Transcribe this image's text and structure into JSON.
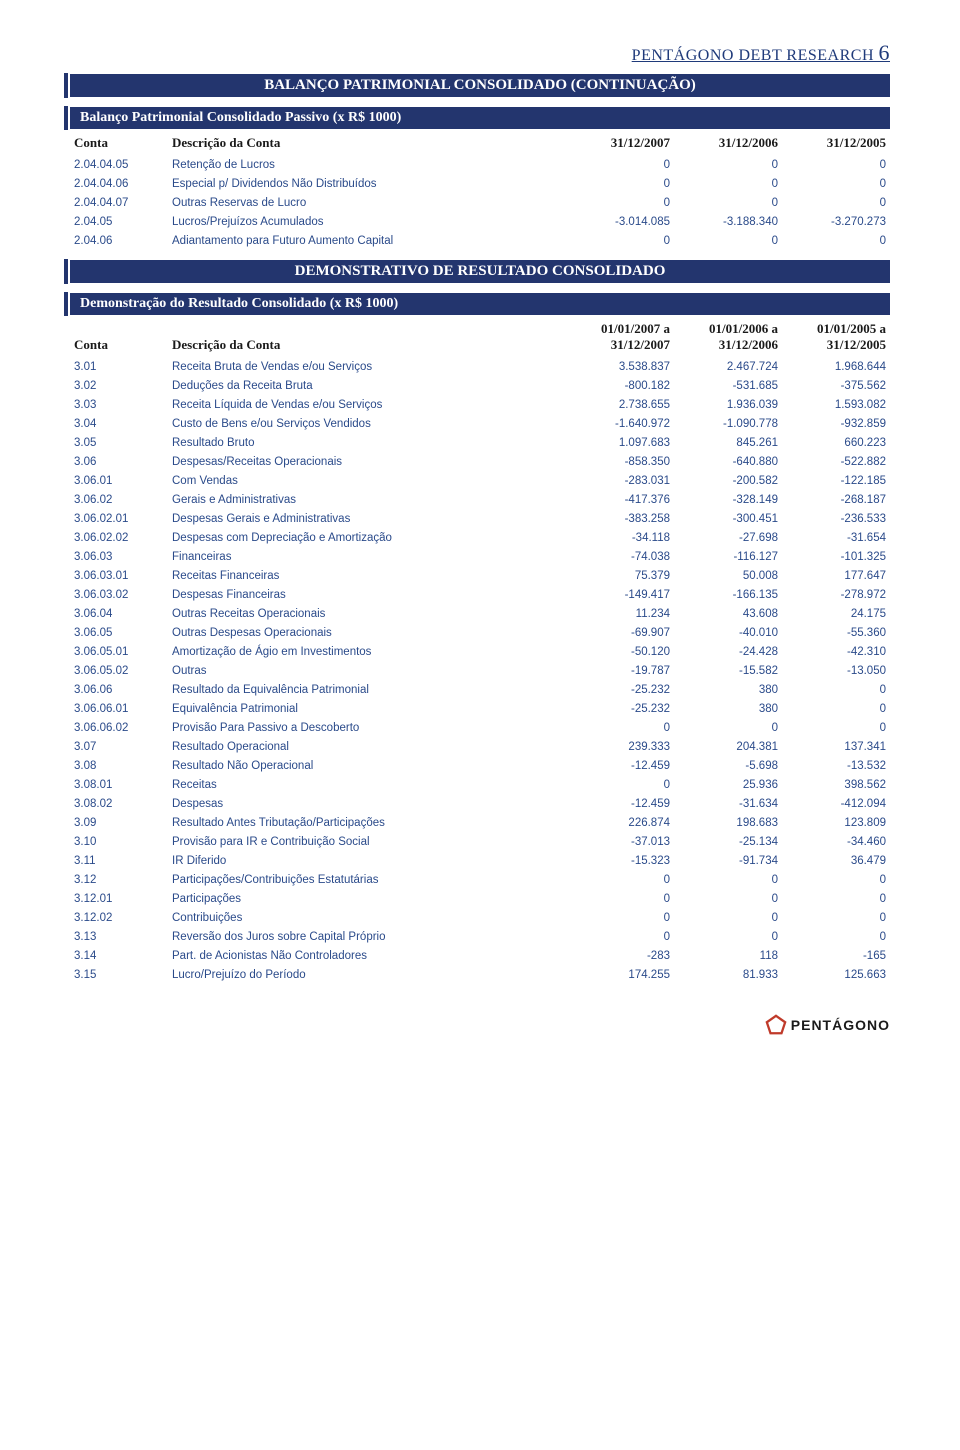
{
  "header": {
    "brand": "PENTÁGONO DEBT RESEARCH",
    "page_number": "6"
  },
  "section1": {
    "title": "BALANÇO PATRIMONIAL CONSOLIDADO (CONTINUAÇÃO)",
    "subtitle": "Balanço Patrimonial Consolidado Passivo (x R$ 1000)",
    "columns": [
      "Conta",
      "Descrição da Conta",
      "31/12/2007",
      "31/12/2006",
      "31/12/2005"
    ],
    "rows": [
      [
        "2.04.04.05",
        "Retenção de Lucros",
        "0",
        "0",
        "0"
      ],
      [
        "2.04.04.06",
        "Especial p/ Dividendos Não Distribuídos",
        "0",
        "0",
        "0"
      ],
      [
        "2.04.04.07",
        "Outras Reservas de Lucro",
        "0",
        "0",
        "0"
      ],
      [
        "2.04.05",
        "Lucros/Prejuízos Acumulados",
        "-3.014.085",
        "-3.188.340",
        "-3.270.273"
      ],
      [
        "2.04.06",
        "Adiantamento para Futuro Aumento Capital",
        "0",
        "0",
        "0"
      ]
    ]
  },
  "section2": {
    "title": "DEMONSTRATIVO DE RESULTADO CONSOLIDADO",
    "subtitle": "Demonstração do Resultado Consolidado (x R$ 1000)",
    "columns": [
      "Conta",
      "Descrição da Conta",
      "01/01/2007 a 31/12/2007",
      "01/01/2006 a 31/12/2006",
      "01/01/2005 a 31/12/2005"
    ],
    "rows": [
      [
        "3.01",
        "Receita Bruta de Vendas e/ou Serviços",
        "3.538.837",
        "2.467.724",
        "1.968.644"
      ],
      [
        "3.02",
        "Deduções da Receita Bruta",
        "-800.182",
        "-531.685",
        "-375.562"
      ],
      [
        "3.03",
        "Receita Líquida de Vendas e/ou Serviços",
        "2.738.655",
        "1.936.039",
        "1.593.082"
      ],
      [
        "3.04",
        "Custo de Bens e/ou Serviços Vendidos",
        "-1.640.972",
        "-1.090.778",
        "-932.859"
      ],
      [
        "3.05",
        "Resultado Bruto",
        "1.097.683",
        "845.261",
        "660.223"
      ],
      [
        "3.06",
        "Despesas/Receitas Operacionais",
        "-858.350",
        "-640.880",
        "-522.882"
      ],
      [
        "3.06.01",
        "Com Vendas",
        "-283.031",
        "-200.582",
        "-122.185"
      ],
      [
        "3.06.02",
        "Gerais e Administrativas",
        "-417.376",
        "-328.149",
        "-268.187"
      ],
      [
        "3.06.02.01",
        "Despesas Gerais e Administrativas",
        "-383.258",
        "-300.451",
        "-236.533"
      ],
      [
        "3.06.02.02",
        "Despesas com Depreciação e Amortização",
        "-34.118",
        "-27.698",
        "-31.654"
      ],
      [
        "3.06.03",
        "Financeiras",
        "-74.038",
        "-116.127",
        "-101.325"
      ],
      [
        "3.06.03.01",
        "Receitas Financeiras",
        "75.379",
        "50.008",
        "177.647"
      ],
      [
        "3.06.03.02",
        "Despesas Financeiras",
        "-149.417",
        "-166.135",
        "-278.972"
      ],
      [
        "3.06.04",
        "Outras Receitas Operacionais",
        "11.234",
        "43.608",
        "24.175"
      ],
      [
        "3.06.05",
        "Outras Despesas Operacionais",
        "-69.907",
        "-40.010",
        "-55.360"
      ],
      [
        "3.06.05.01",
        "Amortização de Ágio em Investimentos",
        "-50.120",
        "-24.428",
        "-42.310"
      ],
      [
        "3.06.05.02",
        "Outras",
        "-19.787",
        "-15.582",
        "-13.050"
      ],
      [
        "3.06.06",
        "Resultado da Equivalência Patrimonial",
        "-25.232",
        "380",
        "0"
      ],
      [
        "3.06.06.01",
        "Equivalência Patrimonial",
        "-25.232",
        "380",
        "0"
      ],
      [
        "3.06.06.02",
        "Provisão Para Passivo a Descoberto",
        "0",
        "0",
        "0"
      ],
      [
        "3.07",
        "Resultado Operacional",
        "239.333",
        "204.381",
        "137.341"
      ],
      [
        "3.08",
        "Resultado Não Operacional",
        "-12.459",
        "-5.698",
        "-13.532"
      ],
      [
        "3.08.01",
        "Receitas",
        "0",
        "25.936",
        "398.562"
      ],
      [
        "3.08.02",
        "Despesas",
        "-12.459",
        "-31.634",
        "-412.094"
      ],
      [
        "3.09",
        "Resultado Antes Tributação/Participações",
        "226.874",
        "198.683",
        "123.809"
      ],
      [
        "3.10",
        "Provisão para IR e Contribuição Social",
        "-37.013",
        "-25.134",
        "-34.460"
      ],
      [
        "3.11",
        "IR Diferido",
        "-15.323",
        "-91.734",
        "36.479"
      ],
      [
        "3.12",
        "Participações/Contribuições Estatutárias",
        "0",
        "0",
        "0"
      ],
      [
        "3.12.01",
        "Participações",
        "0",
        "0",
        "0"
      ],
      [
        "3.12.02",
        "Contribuições",
        "0",
        "0",
        "0"
      ],
      [
        "3.13",
        "Reversão dos Juros sobre Capital Próprio",
        "0",
        "0",
        "0"
      ],
      [
        "3.14",
        "Part. de Acionistas Não Controladores",
        "-283",
        "118",
        "-165"
      ],
      [
        "3.15",
        "Lucro/Prejuízo do Período",
        "174.255",
        "81.933",
        "125.663"
      ]
    ]
  },
  "footer": {
    "logo_text": "PENTÁGONO",
    "logo_color": "#c03a2a"
  }
}
